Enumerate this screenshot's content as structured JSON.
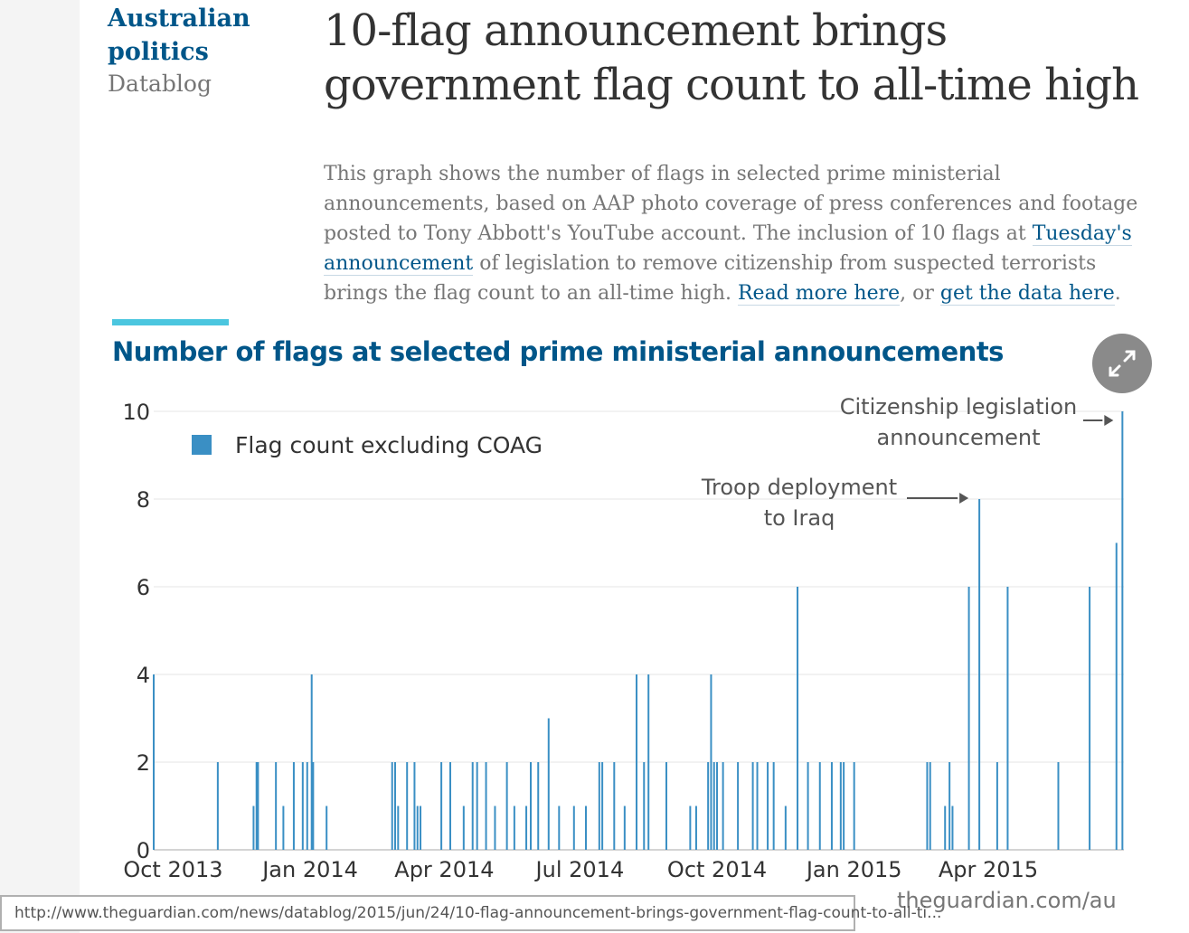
{
  "header": {
    "section": "Australian politics",
    "series": "Datablog",
    "headline": "10-flag announcement brings government flag count to all-time high"
  },
  "standfirst": {
    "text_1": "This graph shows the number of flags in selected prime ministerial announcements, based on AAP photo coverage of press conferences and footage posted to Tony Abbott's YouTube account. The inclusion of 10 flags at ",
    "link_1": "Tuesday's announcement",
    "text_2": " of legislation to remove citizenship from suspected terrorists brings the flag count to an all-time high. ",
    "link_2": "Read more here",
    "text_3": ", or ",
    "link_3": "get the data here",
    "text_4": "."
  },
  "chart_data": {
    "type": "bar",
    "title": "Number of flags at selected prime ministerial announcements",
    "xlabel": "",
    "ylabel": "",
    "xlim": [
      "2013-09-18",
      "2015-06-24"
    ],
    "ylim": [
      0,
      10
    ],
    "yticks": [
      0,
      2,
      4,
      6,
      8,
      10
    ],
    "xticks": [
      {
        "date": "2013-10-01",
        "label": "Oct 2013"
      },
      {
        "date": "2014-01-01",
        "label": "Jan 2014"
      },
      {
        "date": "2014-04-01",
        "label": "Apr 2014"
      },
      {
        "date": "2014-07-01",
        "label": "Jul 2014"
      },
      {
        "date": "2014-10-01",
        "label": "Oct 2014"
      },
      {
        "date": "2015-01-01",
        "label": "Jan 2015"
      },
      {
        "date": "2015-04-01",
        "label": "Apr 2015"
      }
    ],
    "grid": "horizontal",
    "legend_position": "top-left",
    "series": [
      {
        "name": "Flag count excluding COAG",
        "color": "#3a8fc4",
        "points": [
          {
            "x": "2013-09-18",
            "y": 4
          },
          {
            "x": "2013-10-31",
            "y": 2
          },
          {
            "x": "2013-11-24",
            "y": 1
          },
          {
            "x": "2013-11-26",
            "y": 2
          },
          {
            "x": "2013-11-27",
            "y": 2
          },
          {
            "x": "2013-12-09",
            "y": 2
          },
          {
            "x": "2013-12-14",
            "y": 1
          },
          {
            "x": "2013-12-21",
            "y": 2
          },
          {
            "x": "2013-12-27",
            "y": 2
          },
          {
            "x": "2013-12-30",
            "y": 2
          },
          {
            "x": "2014-01-02",
            "y": 4
          },
          {
            "x": "2014-01-03",
            "y": 2
          },
          {
            "x": "2014-01-12",
            "y": 1
          },
          {
            "x": "2014-02-25",
            "y": 2
          },
          {
            "x": "2014-02-27",
            "y": 2
          },
          {
            "x": "2014-03-01",
            "y": 1
          },
          {
            "x": "2014-03-07",
            "y": 2
          },
          {
            "x": "2014-03-12",
            "y": 2
          },
          {
            "x": "2014-03-14",
            "y": 1
          },
          {
            "x": "2014-03-16",
            "y": 1
          },
          {
            "x": "2014-03-30",
            "y": 2
          },
          {
            "x": "2014-04-05",
            "y": 2
          },
          {
            "x": "2014-04-14",
            "y": 1
          },
          {
            "x": "2014-04-20",
            "y": 2
          },
          {
            "x": "2014-04-23",
            "y": 2
          },
          {
            "x": "2014-04-29",
            "y": 2
          },
          {
            "x": "2014-05-05",
            "y": 1
          },
          {
            "x": "2014-05-13",
            "y": 2
          },
          {
            "x": "2014-05-18",
            "y": 1
          },
          {
            "x": "2014-05-26",
            "y": 1
          },
          {
            "x": "2014-05-29",
            "y": 2
          },
          {
            "x": "2014-06-03",
            "y": 2
          },
          {
            "x": "2014-06-10",
            "y": 3
          },
          {
            "x": "2014-06-17",
            "y": 1
          },
          {
            "x": "2014-06-27",
            "y": 1
          },
          {
            "x": "2014-07-05",
            "y": 1
          },
          {
            "x": "2014-07-14",
            "y": 2
          },
          {
            "x": "2014-07-16",
            "y": 2
          },
          {
            "x": "2014-07-24",
            "y": 2
          },
          {
            "x": "2014-07-31",
            "y": 1
          },
          {
            "x": "2014-08-08",
            "y": 4
          },
          {
            "x": "2014-08-13",
            "y": 2
          },
          {
            "x": "2014-08-16",
            "y": 4
          },
          {
            "x": "2014-08-28",
            "y": 2
          },
          {
            "x": "2014-09-13",
            "y": 1
          },
          {
            "x": "2014-09-17",
            "y": 1
          },
          {
            "x": "2014-09-25",
            "y": 2
          },
          {
            "x": "2014-09-27",
            "y": 4
          },
          {
            "x": "2014-09-29",
            "y": 2
          },
          {
            "x": "2014-10-01",
            "y": 2
          },
          {
            "x": "2014-10-05",
            "y": 2
          },
          {
            "x": "2014-10-15",
            "y": 2
          },
          {
            "x": "2014-10-25",
            "y": 2
          },
          {
            "x": "2014-10-28",
            "y": 2
          },
          {
            "x": "2014-11-04",
            "y": 2
          },
          {
            "x": "2014-11-08",
            "y": 2
          },
          {
            "x": "2014-11-16",
            "y": 1
          },
          {
            "x": "2014-11-24",
            "y": 6
          },
          {
            "x": "2014-12-01",
            "y": 2
          },
          {
            "x": "2014-12-09",
            "y": 2
          },
          {
            "x": "2014-12-17",
            "y": 2
          },
          {
            "x": "2014-12-23",
            "y": 2
          },
          {
            "x": "2014-12-25",
            "y": 2
          },
          {
            "x": "2015-01-01",
            "y": 2
          },
          {
            "x": "2015-02-19",
            "y": 2
          },
          {
            "x": "2015-02-21",
            "y": 2
          },
          {
            "x": "2015-03-03",
            "y": 1
          },
          {
            "x": "2015-03-06",
            "y": 2
          },
          {
            "x": "2015-03-08",
            "y": 1
          },
          {
            "x": "2015-03-19",
            "y": 6
          },
          {
            "x": "2015-03-26",
            "y": 8
          },
          {
            "x": "2015-04-07",
            "y": 2
          },
          {
            "x": "2015-04-14",
            "y": 6
          },
          {
            "x": "2015-05-18",
            "y": 2
          },
          {
            "x": "2015-06-08",
            "y": 6
          },
          {
            "x": "2015-06-26",
            "y": 7
          },
          {
            "x": "2015-06-30",
            "y": 10
          }
        ]
      }
    ],
    "annotations": [
      {
        "text_lines": [
          "Troop deployment",
          "to Iraq"
        ],
        "target_x": "2015-03-26",
        "target_y": 8
      },
      {
        "text_lines": [
          "Citizenship legislation",
          "announcement"
        ],
        "target_x": "2015-06-30",
        "target_y": 10
      }
    ],
    "credit": "theguardian.com/au"
  },
  "status_bar": {
    "url": "http://www.theguardian.com/news/datablog/2015/jun/24/10-flag-announcement-brings-government-flag-count-to-all-ti..."
  }
}
